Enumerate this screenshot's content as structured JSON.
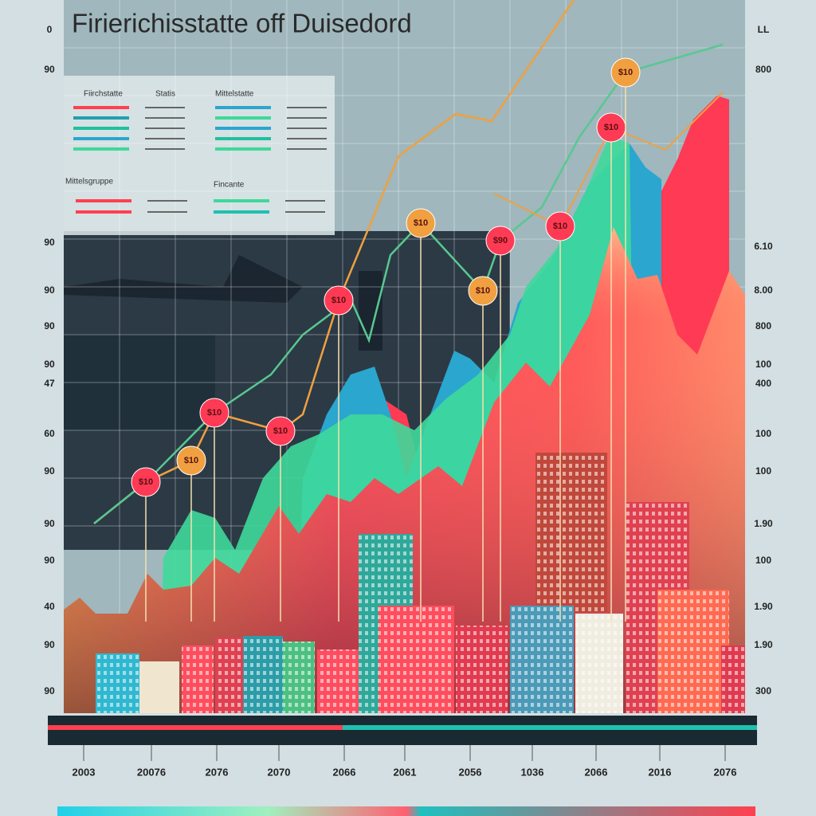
{
  "header": {
    "title": "Firierichisstatte off Duisedord"
  },
  "legend": {
    "headings": [
      "Fiirchstatte",
      "Statis",
      "Mittelstatte",
      "Mittelsgruppe",
      "Fincante"
    ]
  },
  "left_axis": [
    "0",
    "90",
    "90",
    "90",
    "90",
    "90",
    "47",
    "60",
    "90",
    "90",
    "90",
    "40",
    "90",
    "90"
  ],
  "right_axis": [
    "LL",
    "800",
    "6.10",
    "8.00",
    "800",
    "100",
    "400",
    "100",
    "100",
    "1.90",
    "100",
    "1.90",
    "1.90",
    "300"
  ],
  "x_axis": [
    "2003",
    "20076",
    "2076",
    "2070",
    "2066",
    "2061",
    "2056",
    "1036",
    "2066",
    "2016",
    "2076"
  ],
  "markers": [
    "$10",
    "$10",
    "$10",
    "$10",
    "$10",
    "$10",
    "$10",
    "$90",
    "$10",
    "$10",
    "$10"
  ]
}
